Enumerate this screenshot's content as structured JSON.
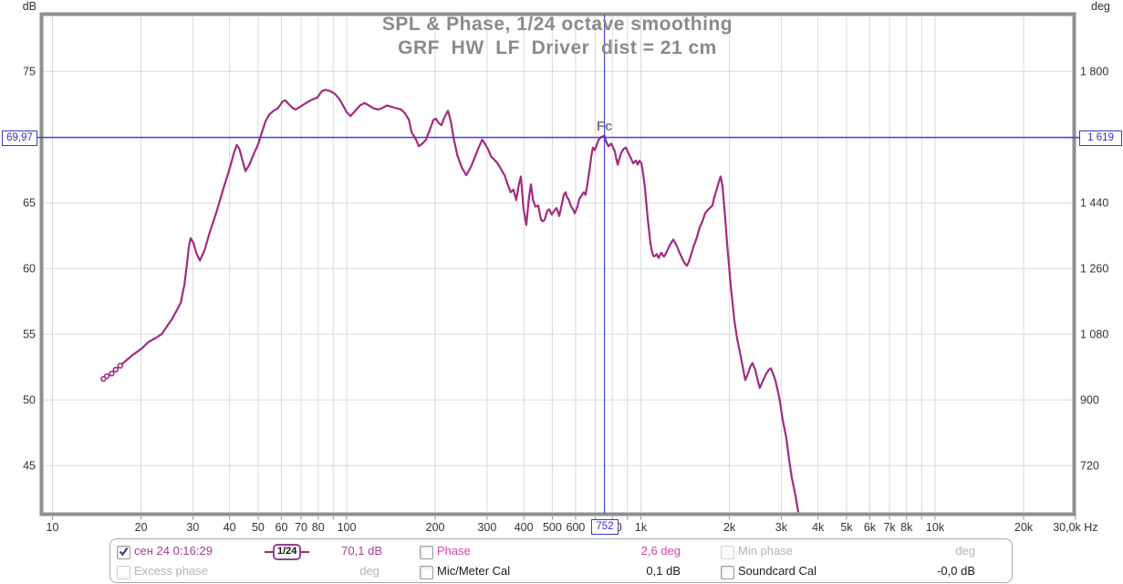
{
  "title": {
    "line1": "SPL & Phase, 1/24 octave smoothing",
    "line2": "GRF  HW  LF  Driver  dist = 21 cm"
  },
  "axes": {
    "left_unit": "dB",
    "right_unit": "deg",
    "y_grid_db": [
      75,
      70,
      65,
      60,
      55,
      50,
      45
    ],
    "y_left_ticks": [
      {
        "db": 75,
        "label": "75"
      },
      {
        "db": 70,
        "label": "70"
      },
      {
        "db": 65,
        "label": "65"
      },
      {
        "db": 60,
        "label": "60"
      },
      {
        "db": 55,
        "label": "55"
      },
      {
        "db": 50,
        "label": "50"
      },
      {
        "db": 45,
        "label": "45"
      }
    ],
    "y_right_ticks": [
      {
        "db": 75,
        "label": "1 800"
      },
      {
        "db": 65,
        "label": "1 440"
      },
      {
        "db": 60,
        "label": "1 260"
      },
      {
        "db": 55,
        "label": "1 080"
      },
      {
        "db": 50,
        "label": "900"
      },
      {
        "db": 45,
        "label": "720"
      }
    ],
    "x_grid": [
      10,
      20,
      30,
      40,
      50,
      60,
      70,
      80,
      90,
      100,
      200,
      300,
      400,
      500,
      600,
      700,
      800,
      900,
      1000,
      2000,
      3000,
      4000,
      5000,
      6000,
      7000,
      8000,
      9000,
      10000,
      20000,
      30000
    ],
    "x_ticks": [
      {
        "f": 10,
        "label": "10"
      },
      {
        "f": 20,
        "label": "20"
      },
      {
        "f": 30,
        "label": "30"
      },
      {
        "f": 40,
        "label": "40"
      },
      {
        "f": 50,
        "label": "50"
      },
      {
        "f": 60,
        "label": "60"
      },
      {
        "f": 70,
        "label": "70"
      },
      {
        "f": 80,
        "label": "80"
      },
      {
        "f": 100,
        "label": "100"
      },
      {
        "f": 200,
        "label": "200"
      },
      {
        "f": 300,
        "label": "300"
      },
      {
        "f": 400,
        "label": "400"
      },
      {
        "f": 500,
        "label": "500"
      },
      {
        "f": 600,
        "label": "600"
      },
      {
        "f": 800,
        "label": "800"
      },
      {
        "f": 1000,
        "label": "1k"
      },
      {
        "f": 2000,
        "label": "2k"
      },
      {
        "f": 3000,
        "label": "3k"
      },
      {
        "f": 4000,
        "label": "4k"
      },
      {
        "f": 5000,
        "label": "5k"
      },
      {
        "f": 6000,
        "label": "6k"
      },
      {
        "f": 7000,
        "label": "7k"
      },
      {
        "f": 8000,
        "label": "8k"
      },
      {
        "f": 10000,
        "label": "10k"
      },
      {
        "f": 20000,
        "label": "20k"
      },
      {
        "f": 30000,
        "label": "30,0k Hz"
      }
    ]
  },
  "cursor": {
    "freq": 752,
    "db": 69.97,
    "db_label": "69,97",
    "deg_label": "1 619",
    "freq_label": "752",
    "marker": "Fc"
  },
  "colors": {
    "curve": "#a32b80",
    "cursor_blue": "#4444cc",
    "grid": "#d9d9d9",
    "border": "#8f8f8f",
    "tick_text": "#333333",
    "title_gray": "#8a8a8a",
    "fc_gray": "#7b7b7b"
  },
  "chart_data": {
    "type": "line",
    "title": "SPL & Phase, 1/24 octave smoothing",
    "subtitle": "GRF  HW  LF  Driver  dist = 21 cm",
    "x_scale": "log",
    "xlim": [
      10,
      30000
    ],
    "xlabel": "Hz",
    "ylabel_left": "dB",
    "ylabel_right": "deg",
    "ylim_db": [
      41.4,
      79.4
    ],
    "right_axis_deg_per_5db": 180,
    "grid": true,
    "cursor": {
      "freq": 752,
      "spl_db": 69.97,
      "right_axis_value": 1619,
      "marker": "Fc",
      "readout_db": "70,1 dB",
      "readout_phase": "2,6 deg"
    },
    "series": [
      {
        "name": "сен 24 0:16:29",
        "color": "#a32b80",
        "smoothing": "1/24 octave",
        "points": [
          [
            14.9,
            51.6
          ],
          [
            15.3,
            51.8
          ],
          [
            15.9,
            52.0
          ],
          [
            16.4,
            52.3
          ],
          [
            17.0,
            52.6
          ],
          [
            17.6,
            52.9
          ],
          [
            18.7,
            53.4
          ],
          [
            20.1,
            53.9
          ],
          [
            21.2,
            54.4
          ],
          [
            22.4,
            54.7
          ],
          [
            23.5,
            55.0
          ],
          [
            24.5,
            55.6
          ],
          [
            25.4,
            56.1
          ],
          [
            26.3,
            56.7
          ],
          [
            27.3,
            57.4
          ],
          [
            28.1,
            58.8
          ],
          [
            28.7,
            60.5
          ],
          [
            29.1,
            61.7
          ],
          [
            29.5,
            62.3
          ],
          [
            30.2,
            61.9
          ],
          [
            30.8,
            61.2
          ],
          [
            31.7,
            60.6
          ],
          [
            32.9,
            61.4
          ],
          [
            34.3,
            62.8
          ],
          [
            36.1,
            64.3
          ],
          [
            38.0,
            66.0
          ],
          [
            40.0,
            67.6
          ],
          [
            41.4,
            68.8
          ],
          [
            42.3,
            69.4
          ],
          [
            43.2,
            69.1
          ],
          [
            44.4,
            68.1
          ],
          [
            45.3,
            67.4
          ],
          [
            46.7,
            67.9
          ],
          [
            48.3,
            68.7
          ],
          [
            50.1,
            69.5
          ],
          [
            51.6,
            70.4
          ],
          [
            53.0,
            71.2
          ],
          [
            54.5,
            71.7
          ],
          [
            56.4,
            72.0
          ],
          [
            58.4,
            72.2
          ],
          [
            60.6,
            72.7
          ],
          [
            61.8,
            72.8
          ],
          [
            63.6,
            72.5
          ],
          [
            65.6,
            72.2
          ],
          [
            67.1,
            72.1
          ],
          [
            69.5,
            72.3
          ],
          [
            71.7,
            72.5
          ],
          [
            75.4,
            72.8
          ],
          [
            79.4,
            73.0
          ],
          [
            82.4,
            73.5
          ],
          [
            84.8,
            73.6
          ],
          [
            87.9,
            73.5
          ],
          [
            91.1,
            73.3
          ],
          [
            94.4,
            72.9
          ],
          [
            97.2,
            72.4
          ],
          [
            100,
            71.9
          ],
          [
            103,
            71.6
          ],
          [
            107,
            72.0
          ],
          [
            111,
            72.4
          ],
          [
            115,
            72.6
          ],
          [
            119,
            72.4
          ],
          [
            123,
            72.2
          ],
          [
            128,
            72.1
          ],
          [
            132,
            72.2
          ],
          [
            137,
            72.4
          ],
          [
            142,
            72.3
          ],
          [
            147,
            72.2
          ],
          [
            153,
            72.1
          ],
          [
            158,
            71.8
          ],
          [
            163,
            71.3
          ],
          [
            166,
            70.4
          ],
          [
            169,
            70.1
          ],
          [
            172,
            69.8
          ],
          [
            176,
            69.3
          ],
          [
            181,
            69.5
          ],
          [
            186,
            69.8
          ],
          [
            192,
            70.6
          ],
          [
            197,
            71.3
          ],
          [
            201,
            71.4
          ],
          [
            205,
            71.1
          ],
          [
            210,
            70.9
          ],
          [
            215,
            71.5
          ],
          [
            221,
            72.0
          ],
          [
            226,
            71.2
          ],
          [
            231,
            69.9
          ],
          [
            238,
            68.6
          ],
          [
            246,
            67.7
          ],
          [
            255,
            67.1
          ],
          [
            264,
            67.7
          ],
          [
            273,
            68.5
          ],
          [
            281,
            69.2
          ],
          [
            289,
            69.8
          ],
          [
            295,
            69.5
          ],
          [
            302,
            69.1
          ],
          [
            310,
            68.5
          ],
          [
            317,
            68.3
          ],
          [
            326,
            68.0
          ],
          [
            334,
            67.6
          ],
          [
            344,
            67.1
          ],
          [
            354,
            66.3
          ],
          [
            361,
            65.8
          ],
          [
            369,
            66.0
          ],
          [
            377,
            65.2
          ],
          [
            385,
            66.4
          ],
          [
            391,
            67.0
          ],
          [
            399,
            64.6
          ],
          [
            408,
            63.3
          ],
          [
            416,
            65.3
          ],
          [
            423,
            66.4
          ],
          [
            430,
            65.2
          ],
          [
            438,
            64.7
          ],
          [
            448,
            64.8
          ],
          [
            458,
            63.7
          ],
          [
            464,
            63.6
          ],
          [
            471,
            63.7
          ],
          [
            481,
            64.4
          ],
          [
            488,
            64.5
          ],
          [
            498,
            64.1
          ],
          [
            508,
            64.4
          ],
          [
            517,
            64.6
          ],
          [
            528,
            64.0
          ],
          [
            539,
            64.9
          ],
          [
            547,
            65.6
          ],
          [
            555,
            65.8
          ],
          [
            561,
            65.4
          ],
          [
            567,
            65.3
          ],
          [
            580,
            64.7
          ],
          [
            588,
            64.5
          ],
          [
            596,
            64.2
          ],
          [
            609,
            64.7
          ],
          [
            618,
            65.3
          ],
          [
            627,
            65.5
          ],
          [
            635,
            65.7
          ],
          [
            640,
            65.8
          ],
          [
            649,
            65.6
          ],
          [
            657,
            66.3
          ],
          [
            663,
            66.9
          ],
          [
            673,
            67.9
          ],
          [
            680,
            68.7
          ],
          [
            687,
            69.2
          ],
          [
            693,
            69.1
          ],
          [
            697,
            69.0
          ],
          [
            706,
            69.3
          ],
          [
            718,
            69.8
          ],
          [
            733,
            70.0
          ],
          [
            752,
            70.1
          ],
          [
            760,
            69.7
          ],
          [
            776,
            69.3
          ],
          [
            785,
            69.4
          ],
          [
            793,
            69.5
          ],
          [
            805,
            69.2
          ],
          [
            816,
            68.9
          ],
          [
            826,
            68.3
          ],
          [
            834,
            67.9
          ],
          [
            846,
            68.4
          ],
          [
            858,
            68.8
          ],
          [
            874,
            69.1
          ],
          [
            889,
            69.2
          ],
          [
            902,
            68.9
          ],
          [
            915,
            68.6
          ],
          [
            929,
            68.3
          ],
          [
            941,
            68.0
          ],
          [
            951,
            68.1
          ],
          [
            962,
            68.2
          ],
          [
            976,
            67.9
          ],
          [
            989,
            68.2
          ],
          [
            1004,
            68.0
          ],
          [
            1018,
            67.2
          ],
          [
            1033,
            66.1
          ],
          [
            1055,
            63.8
          ],
          [
            1078,
            61.9
          ],
          [
            1096,
            61.1
          ],
          [
            1109,
            60.9
          ],
          [
            1122,
            61.0
          ],
          [
            1133,
            61.1
          ],
          [
            1141,
            60.9
          ],
          [
            1149,
            60.8
          ],
          [
            1160,
            61.0
          ],
          [
            1174,
            61.2
          ],
          [
            1187,
            61.0
          ],
          [
            1199,
            60.9
          ],
          [
            1220,
            61.2
          ],
          [
            1243,
            61.6
          ],
          [
            1265,
            61.9
          ],
          [
            1288,
            62.2
          ],
          [
            1305,
            62.0
          ],
          [
            1325,
            61.7
          ],
          [
            1354,
            61.2
          ],
          [
            1380,
            60.8
          ],
          [
            1393,
            60.6
          ],
          [
            1410,
            60.4
          ],
          [
            1434,
            60.2
          ],
          [
            1455,
            60.5
          ],
          [
            1475,
            60.9
          ],
          [
            1507,
            61.6
          ],
          [
            1530,
            62.0
          ],
          [
            1551,
            62.4
          ],
          [
            1584,
            63.1
          ],
          [
            1619,
            63.6
          ],
          [
            1654,
            64.2
          ],
          [
            1680,
            64.4
          ],
          [
            1714,
            64.6
          ],
          [
            1751,
            64.8
          ],
          [
            1776,
            65.4
          ],
          [
            1815,
            66.1
          ],
          [
            1841,
            66.6
          ],
          [
            1867,
            67.0
          ],
          [
            1894,
            66.3
          ],
          [
            1921,
            64.7
          ],
          [
            1935,
            63.8
          ],
          [
            1963,
            61.9
          ],
          [
            1991,
            60.3
          ],
          [
            2020,
            58.7
          ],
          [
            2049,
            57.4
          ],
          [
            2078,
            56.1
          ],
          [
            2123,
            54.7
          ],
          [
            2185,
            53.3
          ],
          [
            2232,
            52.2
          ],
          [
            2264,
            51.5
          ],
          [
            2313,
            52.0
          ],
          [
            2363,
            52.6
          ],
          [
            2397,
            52.8
          ],
          [
            2449,
            52.3
          ],
          [
            2502,
            51.4
          ],
          [
            2538,
            50.9
          ],
          [
            2593,
            51.4
          ],
          [
            2668,
            52.0
          ],
          [
            2725,
            52.3
          ],
          [
            2764,
            52.4
          ],
          [
            2824,
            51.9
          ],
          [
            2865,
            51.5
          ],
          [
            2927,
            50.6
          ],
          [
            2969,
            49.9
          ],
          [
            3033,
            48.5
          ],
          [
            3122,
            47.1
          ],
          [
            3189,
            45.5
          ],
          [
            3258,
            44.1
          ],
          [
            3353,
            42.7
          ],
          [
            3425,
            41.5
          ]
        ]
      }
    ]
  },
  "legend": {
    "items": [
      {
        "id": "measurement",
        "checked": true,
        "label": "сен 24 0:16:29",
        "smoothing_badge": "1/24",
        "value": "70,1 dB"
      },
      {
        "id": "phase",
        "checked": false,
        "label": "Phase",
        "value": "2,6 deg"
      },
      {
        "id": "min-phase",
        "checked": false,
        "label": "Min phase",
        "value": "deg"
      },
      {
        "id": "excess-phase",
        "checked": false,
        "label": "Excess phase",
        "value": "deg"
      },
      {
        "id": "mic-meter-cal",
        "checked": false,
        "label": "Mic/Meter Cal",
        "value": "0,1 dB"
      },
      {
        "id": "soundcard-cal",
        "checked": false,
        "label": "Soundcard Cal",
        "value": "-0,0 dB"
      }
    ]
  }
}
